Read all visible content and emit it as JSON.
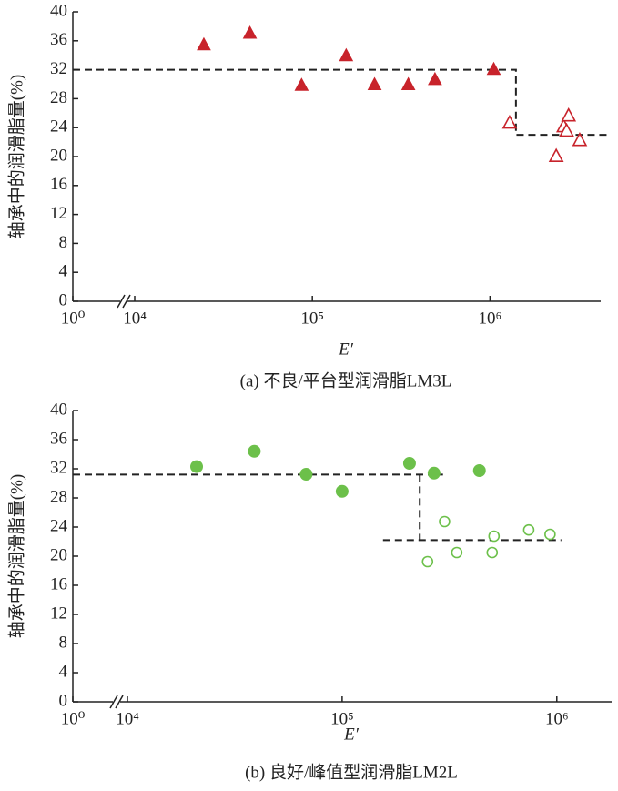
{
  "chart_data": [
    {
      "type": "scatter",
      "ylabel": "轴承中的润滑脂量(%)",
      "xlabel": "E′",
      "caption": "(a) 不良/平台型润滑脂LM3L",
      "xscale": "log",
      "x_axis_break": true,
      "xlim": [
        1,
        4200000
      ],
      "ylim": [
        0,
        40
      ],
      "xticks": [
        {
          "value": 1,
          "label": "10⁰"
        },
        {
          "value": 10000,
          "label": "10⁴"
        },
        {
          "value": 100000,
          "label": "10⁵"
        },
        {
          "value": 1000000,
          "label": "10⁶"
        }
      ],
      "yticks": [
        0,
        4,
        8,
        12,
        16,
        20,
        24,
        28,
        32,
        36,
        40
      ],
      "series": [
        {
          "color": "#c8232b",
          "marker": "triangle",
          "filled": true,
          "x": [
            24500,
            44500,
            87000,
            155000,
            224000,
            347000,
            490000,
            1050000
          ],
          "values": [
            35.5,
            37.1,
            29.9,
            34,
            30,
            30,
            30.7,
            32.1
          ]
        },
        {
          "color": "#c8232b",
          "marker": "triangle",
          "filled": false,
          "x": [
            1290000,
            2360000,
            2600000,
            2770000,
            2700000,
            3200000
          ],
          "values": [
            24.7,
            20.1,
            24.2,
            25.7,
            23.6,
            22.3
          ]
        }
      ],
      "reference_lines": [
        {
          "x": [
            1,
            1400000,
            1400000,
            4600000
          ],
          "y": [
            32,
            32,
            23,
            23
          ]
        }
      ]
    },
    {
      "type": "scatter",
      "ylabel": "轴承中的润滑脂量(%)",
      "xlabel": "E′",
      "caption": "(b) 良好/峰值型润滑脂LM2L",
      "xscale": "log",
      "x_axis_break": true,
      "xlim": [
        1,
        1800000
      ],
      "ylim": [
        0,
        40
      ],
      "xticks": [
        {
          "value": 1,
          "label": "10⁰"
        },
        {
          "value": 10000,
          "label": "10⁴"
        },
        {
          "value": 100000,
          "label": "10⁵"
        },
        {
          "value": 1000000,
          "label": "10⁶"
        }
      ],
      "yticks": [
        0,
        4,
        8,
        12,
        16,
        20,
        24,
        28,
        32,
        36,
        40
      ],
      "series": [
        {
          "color": "#6cc04a",
          "marker": "circle",
          "filled": true,
          "x": [
            21000,
            39000,
            68000,
            100000,
            206000,
            268000,
            436000
          ],
          "values": [
            32.3,
            34.4,
            31.25,
            28.9,
            32.75,
            31.4,
            31.75
          ]
        },
        {
          "color": "#6cc04a",
          "marker": "circle",
          "filled": false,
          "x": [
            250000,
            300000,
            342000,
            500000,
            510000,
            740000,
            930000
          ],
          "values": [
            19.25,
            24.75,
            20.5,
            20.5,
            22.75,
            23.6,
            23
          ]
        }
      ],
      "reference_lines": [
        {
          "x": [
            1,
            295000
          ],
          "y": [
            31.2,
            31.2
          ]
        },
        {
          "x": [
            230000,
            230000
          ],
          "y": [
            31.2,
            22.2
          ]
        },
        {
          "x": [
            155000,
            1050000
          ],
          "y": [
            22.2,
            22.2
          ]
        }
      ]
    }
  ]
}
